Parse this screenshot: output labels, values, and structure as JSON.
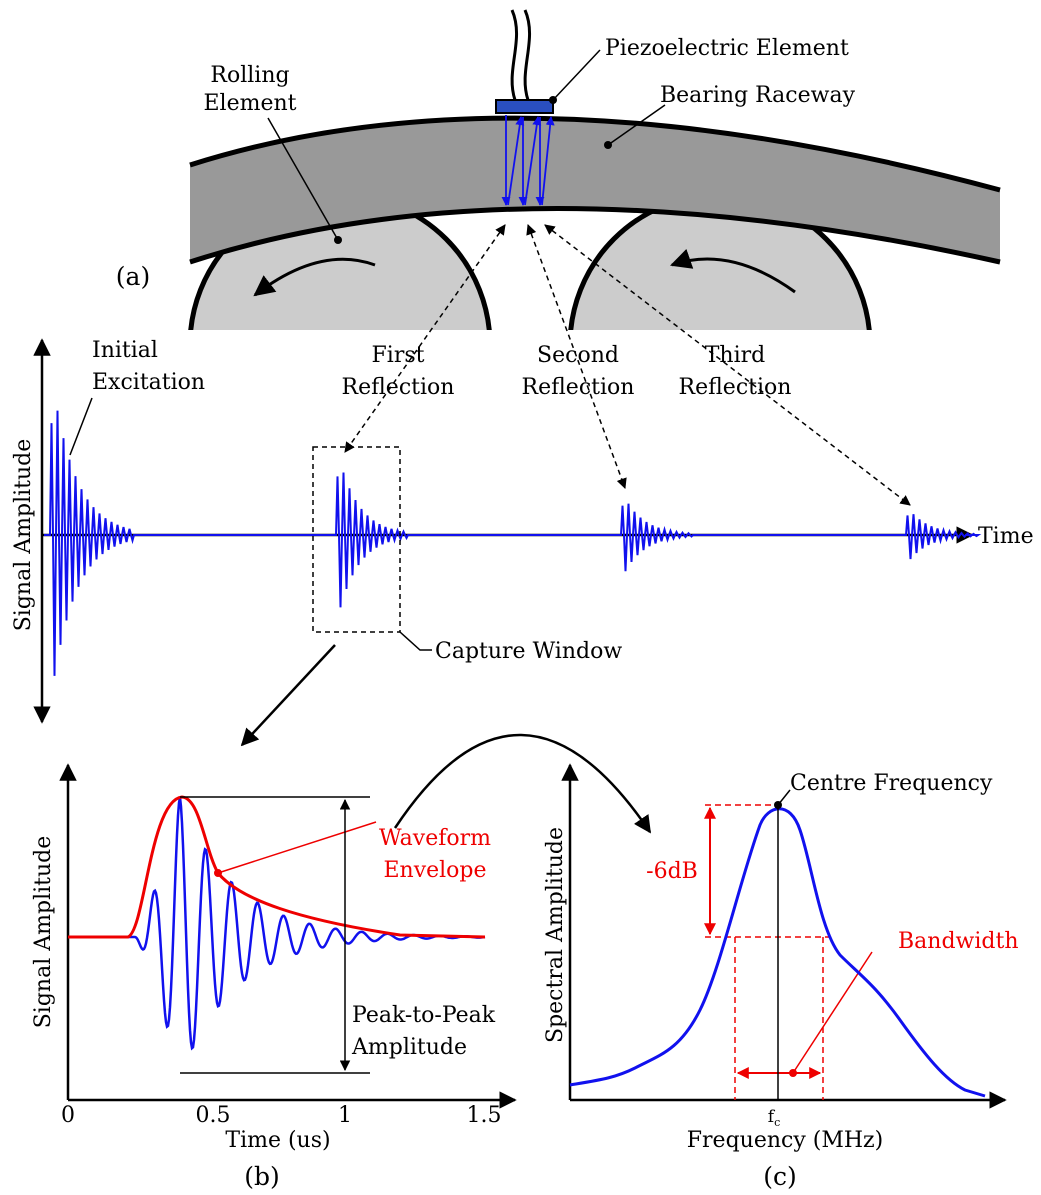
{
  "panel_a": {
    "label": "(a)",
    "piezoelectric_element": "Piezoelectric Element",
    "bearing_raceway": "Bearing Raceway",
    "rolling_element": [
      "Rolling",
      "Element"
    ]
  },
  "signal": {
    "y_axis_label": "Signal Amplitude",
    "x_axis_label": "Time",
    "initial_excitation": [
      "Initial",
      "Excitation"
    ],
    "first_reflection": [
      "First",
      "Reflection"
    ],
    "second_reflection": [
      "Second",
      "Reflection"
    ],
    "third_reflection": [
      "Third",
      "Reflection"
    ],
    "capture_window": "Capture Window"
  },
  "panel_b": {
    "label": "(b)",
    "y_axis_label": "Signal Amplitude",
    "x_axis_label": "Time (us)",
    "x_ticks": [
      "0",
      "0.5",
      "1",
      "1.5"
    ],
    "waveform_envelope": [
      "Waveform",
      "Envelope"
    ],
    "peak_to_peak": [
      "Peak-to-Peak",
      "Amplitude"
    ]
  },
  "panel_c": {
    "label": "(c)",
    "y_axis_label": "Spectral Amplitude",
    "x_axis_label": "Frequency (MHz)",
    "fc": "f",
    "fc_sub": "c",
    "centre_frequency": "Centre Frequency",
    "minus_6db": "-6dB",
    "bandwidth": "Bandwidth"
  }
}
